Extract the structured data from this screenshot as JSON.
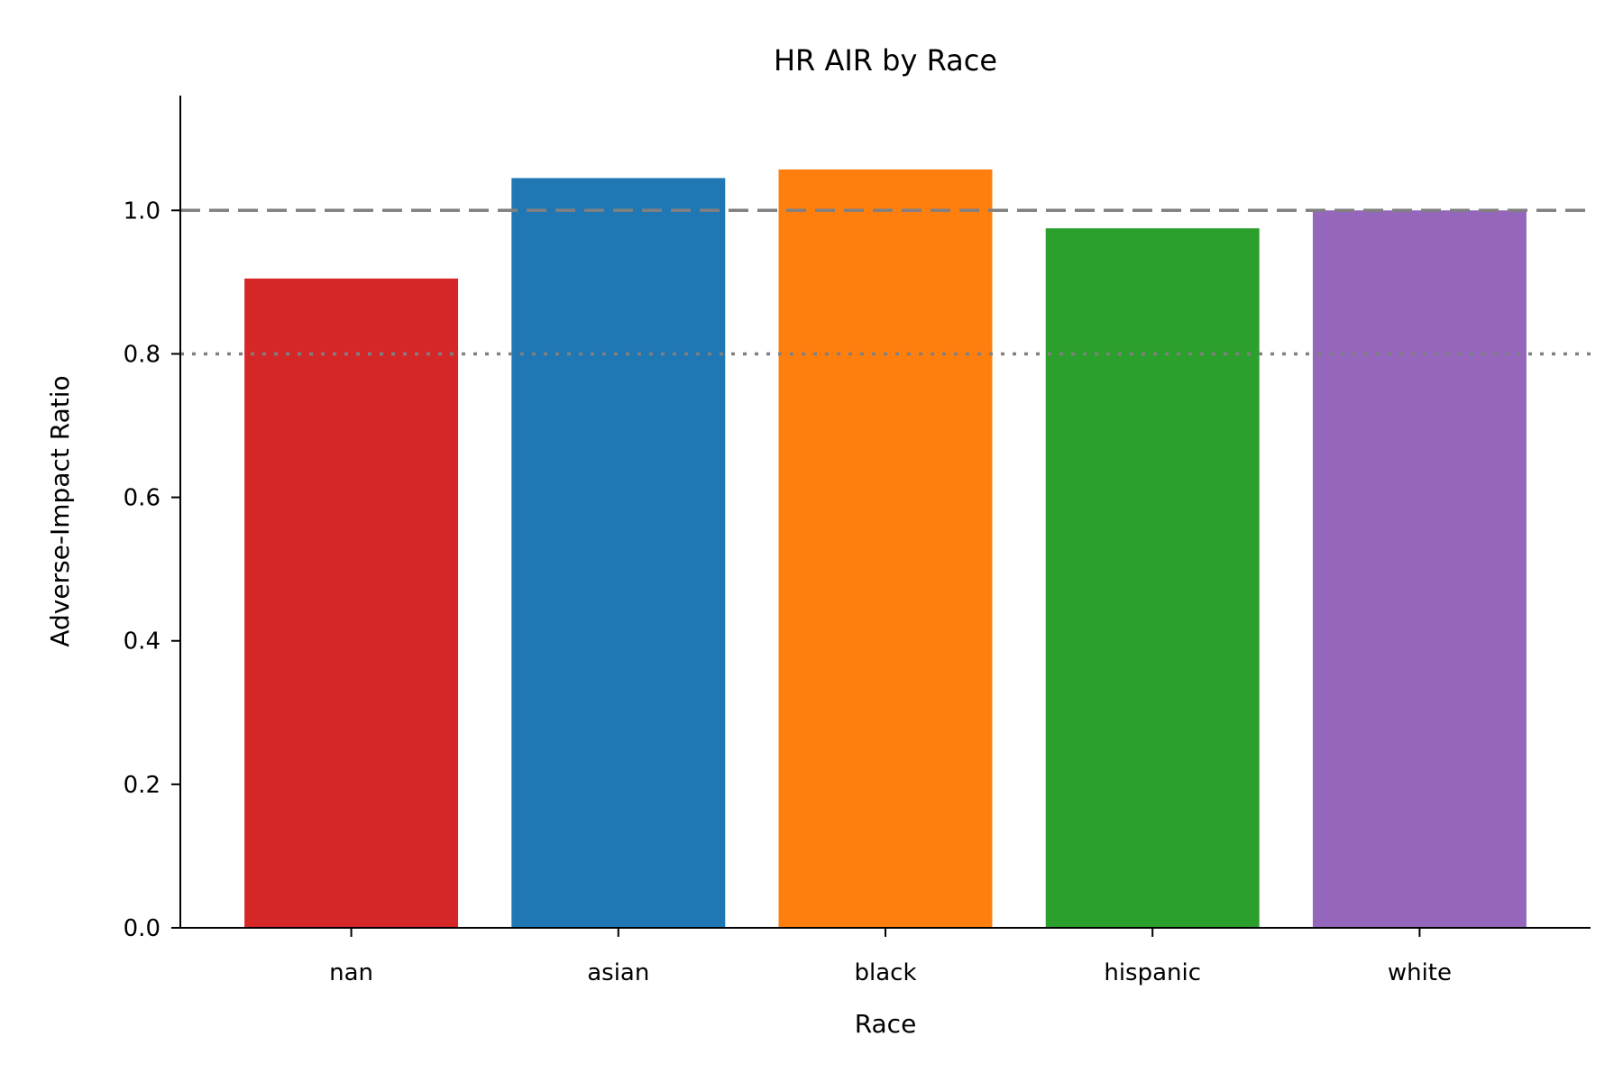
{
  "chart_data": {
    "type": "bar",
    "title": "HR AIR by Race",
    "xlabel": "Race",
    "ylabel": "Adverse-Impact Ratio",
    "categories": [
      "nan",
      "asian",
      "black",
      "hispanic",
      "white"
    ],
    "values": [
      0.905,
      1.045,
      1.057,
      0.975,
      1.0
    ],
    "colors": [
      "#d62728",
      "#1f77b4",
      "#ff7f0e",
      "#2ca02c",
      "#9467bd"
    ],
    "ylim": [
      0,
      1.16
    ],
    "yticks": [
      0.0,
      0.2,
      0.4,
      0.6,
      0.8,
      1.0
    ],
    "ytick_labels": [
      "0.0",
      "0.2",
      "0.4",
      "0.6",
      "0.8",
      "1.0"
    ],
    "reference_lines": [
      {
        "y": 1.0,
        "style": "dashed",
        "color": "#808080"
      },
      {
        "y": 0.8,
        "style": "dotted",
        "color": "#808080"
      }
    ],
    "grid": false,
    "legend": "none"
  }
}
